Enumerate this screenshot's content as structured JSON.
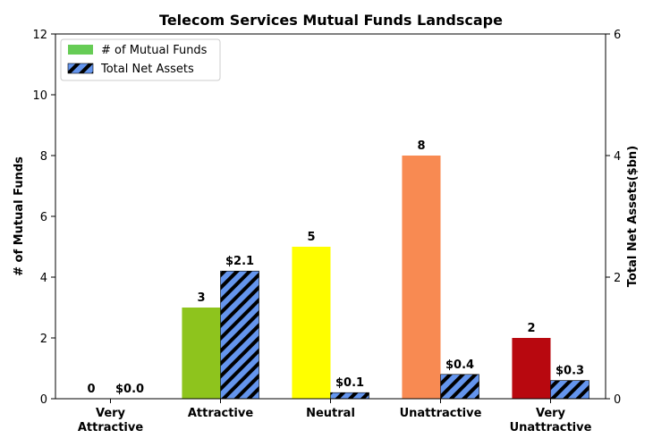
{
  "chart_data": {
    "type": "bar",
    "title": "Telecom Services Mutual Funds Landscape",
    "categories": [
      "Very Attractive",
      "Attractive",
      "Neutral",
      "Unattractive",
      "Very Unattractive"
    ],
    "category_lines": [
      [
        "Very",
        "Attractive"
      ],
      [
        "Attractive"
      ],
      [
        "Neutral"
      ],
      [
        "Unattractive"
      ],
      [
        "Very",
        "Unattractive"
      ]
    ],
    "series": [
      {
        "name": "# of Mutual Funds",
        "axis": "left",
        "values": [
          0,
          3,
          5,
          8,
          2
        ],
        "labels": [
          "0",
          "3",
          "5",
          "8",
          "2"
        ],
        "colors": [
          "#1a9641",
          "#8ec41d",
          "#ffff00",
          "#f88a52",
          "#b8080f"
        ],
        "legend_color": "#66cc55"
      },
      {
        "name": "Total Net Assets",
        "axis": "right",
        "values": [
          0.0,
          2.1,
          0.1,
          0.4,
          0.3
        ],
        "labels": [
          "$0.0",
          "$2.1",
          "$0.1",
          "$0.4",
          "$0.3"
        ],
        "color": "#6495ed",
        "hatch": "diagonal"
      }
    ],
    "ylabel": "# of Mutual Funds",
    "ylabel_right": "Total Net Assets($bn)",
    "ylim": [
      0,
      12
    ],
    "ylim_right": [
      0,
      6
    ],
    "yticks": [
      0,
      2,
      4,
      6,
      8,
      10,
      12
    ],
    "yticks_right": [
      0,
      2,
      4,
      6
    ],
    "legend_position": "top-left",
    "grid": false
  }
}
